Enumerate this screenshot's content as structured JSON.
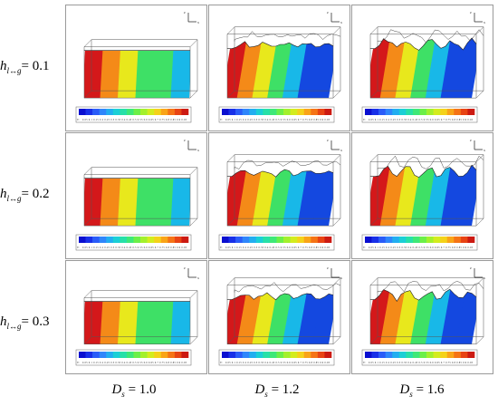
{
  "rows": [
    {
      "symbol": "h",
      "subscript": "l↔g",
      "equals": "= 0.1"
    },
    {
      "symbol": "h",
      "subscript": "l↔g",
      "equals": "= 0.2"
    },
    {
      "symbol": "h",
      "subscript": "l↔g",
      "equals": "= 0.3"
    }
  ],
  "columns": [
    {
      "symbol": "D",
      "subscript": "s",
      "equals": " = 1.0"
    },
    {
      "symbol": "D",
      "subscript": "s",
      "equals": " = 1.2"
    },
    {
      "symbol": "D",
      "subscript": "s",
      "equals": " = 1.6"
    }
  ],
  "colorbar": {
    "colors": [
      "#0a0fd0",
      "#1830e8",
      "#2a5cf8",
      "#2f86fb",
      "#22aef0",
      "#1bcfd6",
      "#27e0a8",
      "#3ee878",
      "#6cef48",
      "#a3f02c",
      "#d3ec1e",
      "#f4d21a",
      "#f9a418",
      "#f57416",
      "#e84414",
      "#cc1a12"
    ],
    "variable": "T",
    "labels_rows": [
      "0.05 0.1 0.15 0.2 0.25 0.3 0.35 0.4 0.45 0.5 0.55 0.6 0.65 0.7 0.75 0.8 0.85 0.9 0.95",
      "0.05 0.1 0.15 0.2 0.25 0.3 0.35 0.4 0.45 0.5 0.55 0.6 0.65 0.7 0.75 0.8 0.85 0.9 0.95",
      "0.05 0.1 0.15 0.2 0.25 0.3 0.35 0.4 0.45 0.5 0.55 0.6 0.65 0.7 0.75 0.8 0.85 0.9 0.95"
    ]
  },
  "axes_triad": {
    "z": "z",
    "x": "x"
  },
  "field_colors": {
    "hot": "#d4181a",
    "warm": "#f48a18",
    "mid": "#e8e81c",
    "cool": "#3ee066",
    "cold": "#18b8e8",
    "coldest": "#1448e0"
  }
}
